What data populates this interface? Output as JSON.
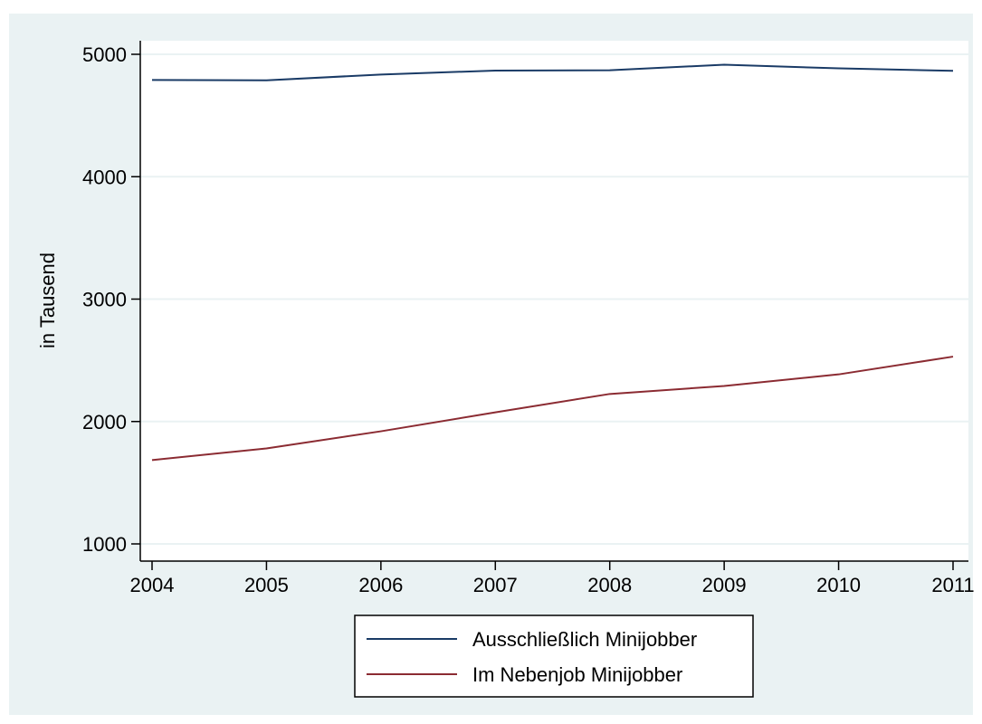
{
  "chart_data": {
    "type": "line",
    "title": "",
    "xlabel": "",
    "ylabel": "in Tausend",
    "x": [
      2004,
      2005,
      2006,
      2007,
      2008,
      2009,
      2010,
      2011
    ],
    "xticks": [
      "2004",
      "2005",
      "2006",
      "2007",
      "2008",
      "2009",
      "2010",
      "2011"
    ],
    "yticks": [
      "1000",
      "2000",
      "3000",
      "4000",
      "5000"
    ],
    "ylim": [
      1000,
      5000
    ],
    "grid": true,
    "legend_position": "bottom",
    "series": [
      {
        "name": "Ausschließlich Minijobber",
        "color": "#1a3b66",
        "values": [
          4790,
          4787,
          4835,
          4867,
          4870,
          4915,
          4885,
          4865
        ]
      },
      {
        "name": "Im Nebenjob Minijobber",
        "color": "#8b2b32",
        "values": [
          1685,
          1780,
          1920,
          2075,
          2225,
          2290,
          2385,
          2530
        ]
      }
    ],
    "colors": {
      "background": "#eaf2f3",
      "plot_area": "#ffffff",
      "grid": "#eaf2f3"
    }
  }
}
